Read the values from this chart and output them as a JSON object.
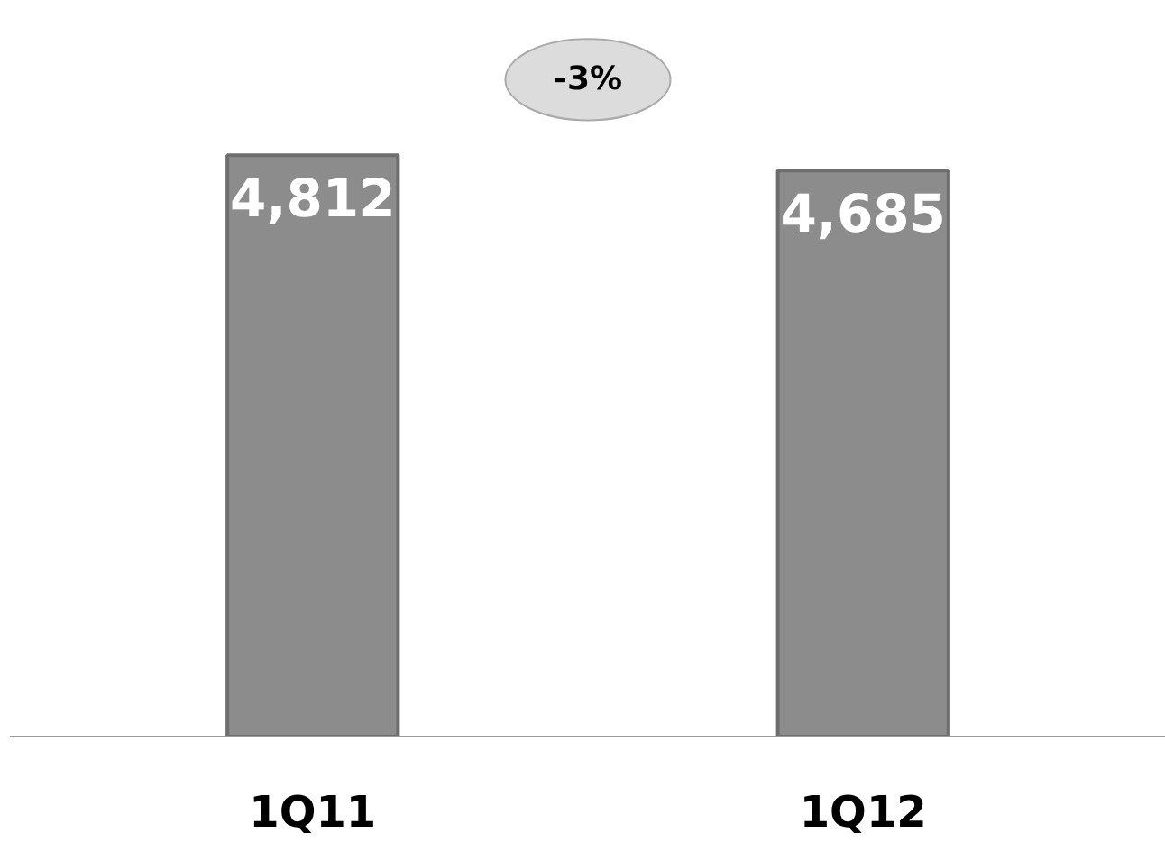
{
  "chart_data": {
    "type": "bar",
    "categories": [
      "1Q11",
      "1Q12"
    ],
    "values": [
      4812,
      4685
    ],
    "color": "#8c8c8c",
    "data_labels": true,
    "value_labels": [
      "4,812",
      "4,685"
    ],
    "annotations": [
      "-3%"
    ]
  }
}
